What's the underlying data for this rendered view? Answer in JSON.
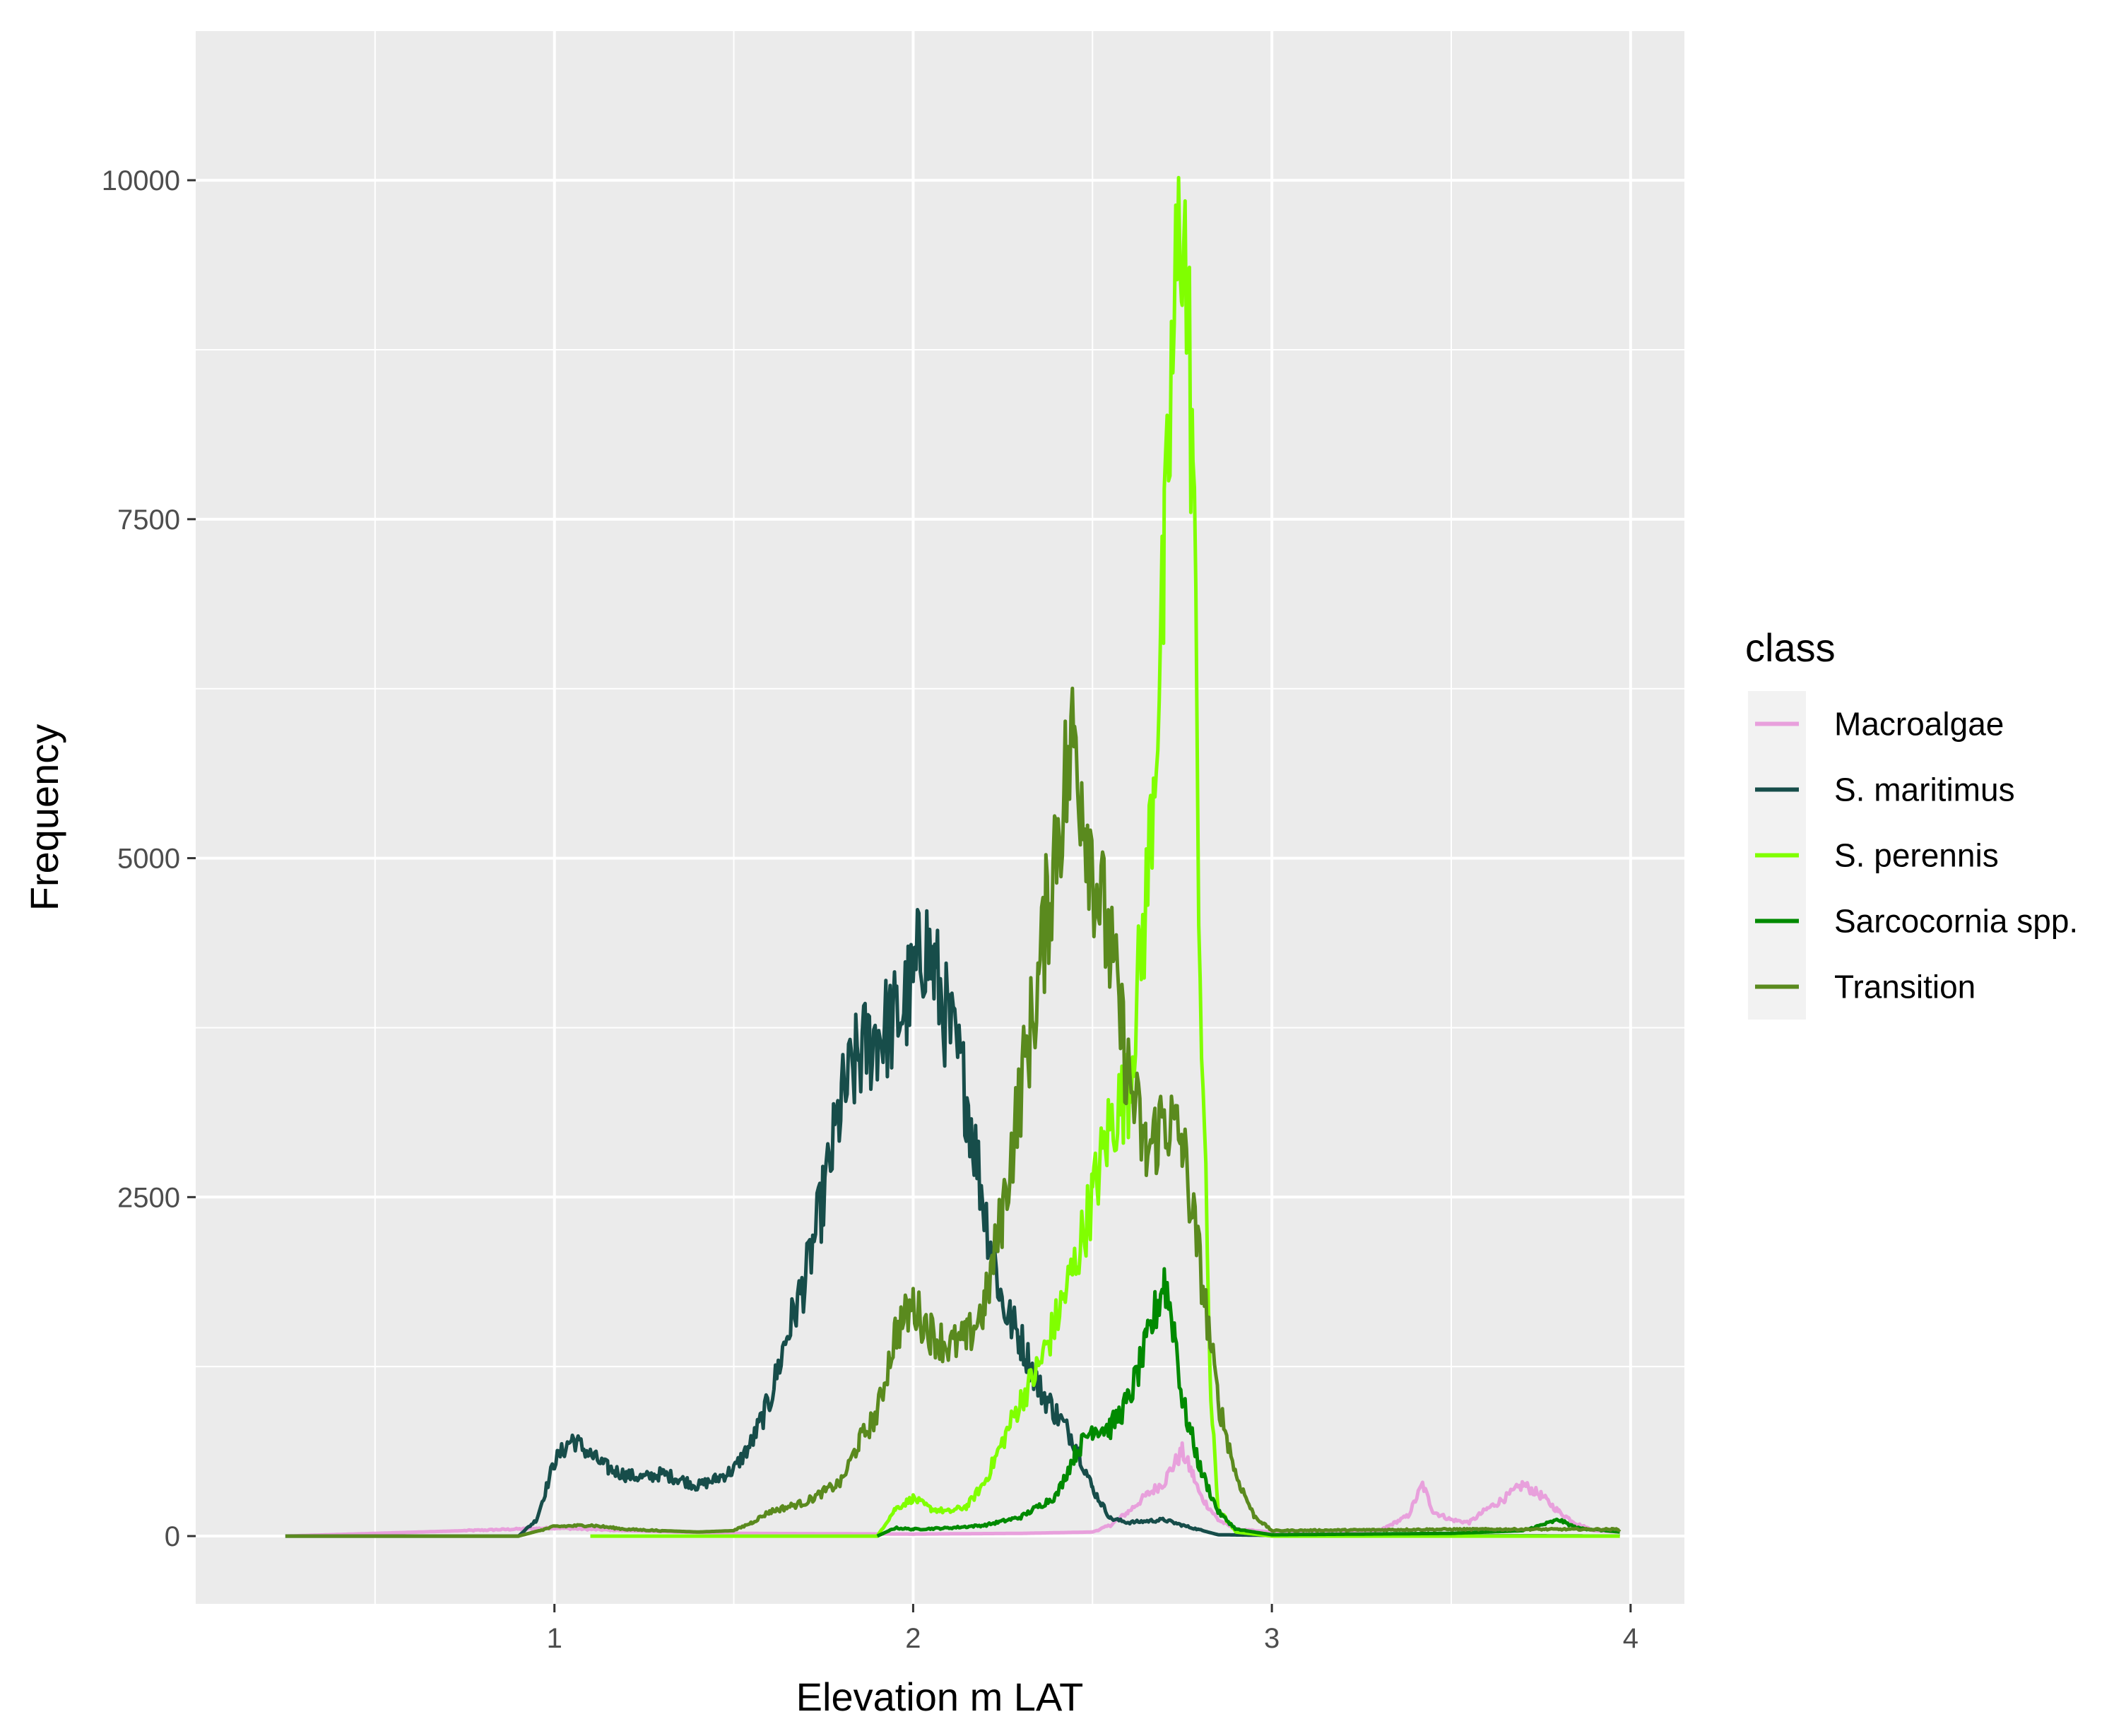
{
  "chart_data": {
    "type": "line",
    "title": "",
    "xlabel": "Elevation m LAT",
    "ylabel": "Frequency",
    "xlim": [
      0.0,
      4.15
    ],
    "ylim": [
      -500,
      11100
    ],
    "x_ticks": [
      1,
      2,
      3,
      4
    ],
    "x_minor": [
      0.5,
      1.5,
      2.5,
      3.5
    ],
    "y_ticks": [
      0,
      2500,
      5000,
      7500,
      10000
    ],
    "y_minor": [
      1250,
      3750,
      6250,
      8750
    ],
    "x_tick_labels": [
      "1",
      "2",
      "3",
      "4"
    ],
    "y_tick_labels": [
      "0",
      "2500",
      "5000",
      "7500",
      "10000"
    ],
    "grid": true,
    "legend_position": "right",
    "legend_title": "class",
    "series": [
      {
        "name": "Macroalgae",
        "color": "#e8a0dc",
        "points": [
          [
            0.25,
            0
          ],
          [
            1.0,
            60
          ],
          [
            1.2,
            40
          ],
          [
            1.5,
            20
          ],
          [
            2.0,
            15
          ],
          [
            2.3,
            20
          ],
          [
            2.5,
            30
          ],
          [
            2.55,
            80
          ],
          [
            2.6,
            180
          ],
          [
            2.65,
            300
          ],
          [
            2.7,
            400
          ],
          [
            2.72,
            500
          ],
          [
            2.75,
            620
          ],
          [
            2.78,
            450
          ],
          [
            2.8,
            300
          ],
          [
            2.85,
            120
          ],
          [
            2.9,
            50
          ],
          [
            3.0,
            30
          ],
          [
            3.3,
            40
          ],
          [
            3.38,
            150
          ],
          [
            3.42,
            380
          ],
          [
            3.45,
            180
          ],
          [
            3.5,
            120
          ],
          [
            3.55,
            100
          ],
          [
            3.6,
            200
          ],
          [
            3.65,
            280
          ],
          [
            3.7,
            380
          ],
          [
            3.75,
            300
          ],
          [
            3.8,
            180
          ],
          [
            3.85,
            90
          ],
          [
            3.9,
            40
          ],
          [
            3.97,
            30
          ]
        ]
      },
      {
        "name": "S. maritimus",
        "color": "#174d4a",
        "points": [
          [
            0.25,
            0
          ],
          [
            0.9,
            0
          ],
          [
            0.95,
            120
          ],
          [
            1.0,
            550
          ],
          [
            1.05,
            720
          ],
          [
            1.1,
            600
          ],
          [
            1.15,
            500
          ],
          [
            1.2,
            450
          ],
          [
            1.25,
            430
          ],
          [
            1.3,
            460
          ],
          [
            1.35,
            420
          ],
          [
            1.4,
            370
          ],
          [
            1.45,
            420
          ],
          [
            1.5,
            490
          ],
          [
            1.55,
            690
          ],
          [
            1.6,
            1000
          ],
          [
            1.65,
            1500
          ],
          [
            1.7,
            1900
          ],
          [
            1.75,
            2500
          ],
          [
            1.8,
            3200
          ],
          [
            1.85,
            3550
          ],
          [
            1.9,
            3700
          ],
          [
            1.95,
            3800
          ],
          [
            2.0,
            4050
          ],
          [
            2.03,
            4400
          ],
          [
            2.06,
            4150
          ],
          [
            2.1,
            3750
          ],
          [
            2.15,
            3250
          ],
          [
            2.2,
            2400
          ],
          [
            2.25,
            1700
          ],
          [
            2.3,
            1450
          ],
          [
            2.35,
            1100
          ],
          [
            2.4,
            900
          ],
          [
            2.45,
            700
          ],
          [
            2.5,
            350
          ],
          [
            2.55,
            130
          ],
          [
            2.6,
            100
          ],
          [
            2.7,
            120
          ],
          [
            2.75,
            80
          ],
          [
            2.85,
            10
          ],
          [
            3.0,
            5
          ],
          [
            3.97,
            0
          ]
        ]
      },
      {
        "name": "S. perennis",
        "color": "#80ff00",
        "points": [
          [
            1.1,
            0
          ],
          [
            1.9,
            0
          ],
          [
            1.95,
            200
          ],
          [
            2.0,
            280
          ],
          [
            2.05,
            200
          ],
          [
            2.1,
            180
          ],
          [
            2.15,
            220
          ],
          [
            2.2,
            400
          ],
          [
            2.25,
            700
          ],
          [
            2.3,
            1000
          ],
          [
            2.35,
            1250
          ],
          [
            2.4,
            1600
          ],
          [
            2.45,
            2000
          ],
          [
            2.5,
            2500
          ],
          [
            2.55,
            3050
          ],
          [
            2.6,
            3300
          ],
          [
            2.65,
            4700
          ],
          [
            2.7,
            7000
          ],
          [
            2.72,
            8500
          ],
          [
            2.75,
            9900
          ],
          [
            2.78,
            8000
          ],
          [
            2.8,
            4200
          ],
          [
            2.83,
            1000
          ],
          [
            2.85,
            200
          ],
          [
            2.9,
            30
          ],
          [
            3.0,
            0
          ],
          [
            3.97,
            0
          ]
        ]
      },
      {
        "name": "Sarcocornia spp.",
        "color": "#008a00",
        "points": [
          [
            1.9,
            0
          ],
          [
            1.95,
            60
          ],
          [
            2.0,
            50
          ],
          [
            2.1,
            60
          ],
          [
            2.2,
            80
          ],
          [
            2.3,
            140
          ],
          [
            2.4,
            300
          ],
          [
            2.45,
            600
          ],
          [
            2.5,
            800
          ],
          [
            2.55,
            800
          ],
          [
            2.6,
            1000
          ],
          [
            2.65,
            1400
          ],
          [
            2.7,
            1900
          ],
          [
            2.73,
            1500
          ],
          [
            2.75,
            1000
          ],
          [
            2.8,
            500
          ],
          [
            2.85,
            180
          ],
          [
            2.9,
            50
          ],
          [
            3.0,
            10
          ],
          [
            3.5,
            20
          ],
          [
            3.7,
            40
          ],
          [
            3.75,
            80
          ],
          [
            3.8,
            120
          ],
          [
            3.85,
            60
          ],
          [
            3.97,
            30
          ]
        ]
      },
      {
        "name": "Transition",
        "color": "#5a8a1e",
        "points": [
          [
            0.25,
            0
          ],
          [
            0.9,
            0
          ],
          [
            1.0,
            70
          ],
          [
            1.1,
            80
          ],
          [
            1.2,
            50
          ],
          [
            1.3,
            40
          ],
          [
            1.4,
            30
          ],
          [
            1.5,
            40
          ],
          [
            1.55,
            100
          ],
          [
            1.6,
            180
          ],
          [
            1.7,
            250
          ],
          [
            1.8,
            400
          ],
          [
            1.85,
            700
          ],
          [
            1.9,
            900
          ],
          [
            1.95,
            1500
          ],
          [
            2.0,
            1700
          ],
          [
            2.05,
            1500
          ],
          [
            2.1,
            1400
          ],
          [
            2.15,
            1450
          ],
          [
            2.2,
            1700
          ],
          [
            2.25,
            2400
          ],
          [
            2.3,
            3300
          ],
          [
            2.35,
            4100
          ],
          [
            2.4,
            5200
          ],
          [
            2.45,
            5900
          ],
          [
            2.5,
            5000
          ],
          [
            2.55,
            4300
          ],
          [
            2.6,
            3400
          ],
          [
            2.65,
            2800
          ],
          [
            2.7,
            3100
          ],
          [
            2.75,
            2900
          ],
          [
            2.8,
            2000
          ],
          [
            2.85,
            1000
          ],
          [
            2.9,
            450
          ],
          [
            2.95,
            150
          ],
          [
            3.0,
            40
          ],
          [
            3.5,
            50
          ],
          [
            3.97,
            50
          ]
        ]
      }
    ]
  }
}
